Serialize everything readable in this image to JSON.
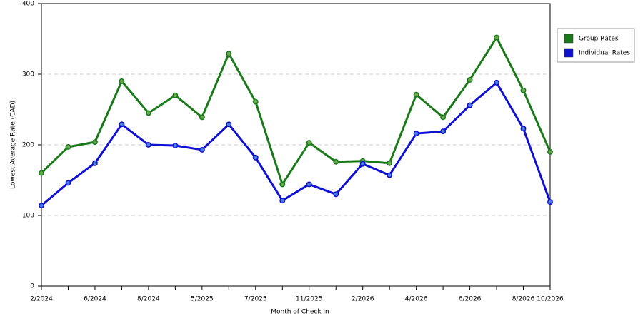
{
  "chart_data": {
    "type": "line",
    "x_label": "Month of Check In",
    "y_label": "Lowest Average Rate (CAD)",
    "categories": [
      "2/2024",
      null,
      "6/2024",
      null,
      "8/2024",
      null,
      "5/2025",
      null,
      "7/2025",
      null,
      "11/2025",
      null,
      "2/2026",
      null,
      "4/2026",
      null,
      "6/2026",
      null,
      "8/2026",
      "10/2026"
    ],
    "series": [
      {
        "name": "Group Rates",
        "color": "#1a7a1a",
        "values": [
          160,
          197,
          204,
          290,
          245,
          270,
          239,
          329,
          261,
          144,
          203,
          176,
          177,
          174,
          271,
          239,
          292,
          352,
          277,
          190
        ]
      },
      {
        "name": "Individual Rates",
        "color": "#1010d0",
        "values": [
          114,
          146,
          174,
          229,
          200,
          199,
          193,
          229,
          182,
          121,
          144,
          130,
          173,
          157,
          216,
          219,
          256,
          288,
          223,
          119
        ]
      }
    ],
    "ylim": [
      0,
      400
    ],
    "yticks": [
      0,
      100,
      200,
      300,
      400
    ],
    "grid": true,
    "legend": "right"
  }
}
